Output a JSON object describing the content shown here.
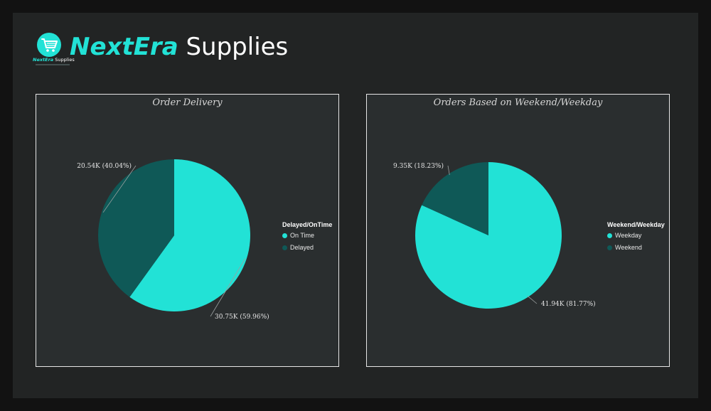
{
  "brand": {
    "name_accent": "NextEra",
    "name_rest": "Supplies",
    "logo_icon": "shopping-cart-icon",
    "logo_text_accent": "NextEra",
    "logo_text_rest": "Supplies"
  },
  "colors": {
    "accent": "#22e2d6",
    "dark_slice": "#0f5957",
    "panel_bg": "#2a2e2f",
    "page_bg": "#222424"
  },
  "chart_data": [
    {
      "type": "pie",
      "title": "Order Delivery",
      "legend_title": "Delayed/OnTime",
      "legend_position": "right",
      "slices": [
        {
          "name": "On Time",
          "value": 30750,
          "label": "30.75K (59.96%)",
          "color": "#22e2d6"
        },
        {
          "name": "Delayed",
          "value": 20540,
          "label": "20.54K (40.04%)",
          "color": "#0f5957"
        }
      ]
    },
    {
      "type": "pie",
      "title": "Orders Based on Weekend/Weekday",
      "legend_title": "Weekend/Weekday",
      "legend_position": "right",
      "slices": [
        {
          "name": "Weekday",
          "value": 41940,
          "label": "41.94K (81.77%)",
          "color": "#22e2d6"
        },
        {
          "name": "Weekend",
          "value": 9350,
          "label": "9.35K (18.23%)",
          "color": "#0f5957"
        }
      ]
    }
  ]
}
